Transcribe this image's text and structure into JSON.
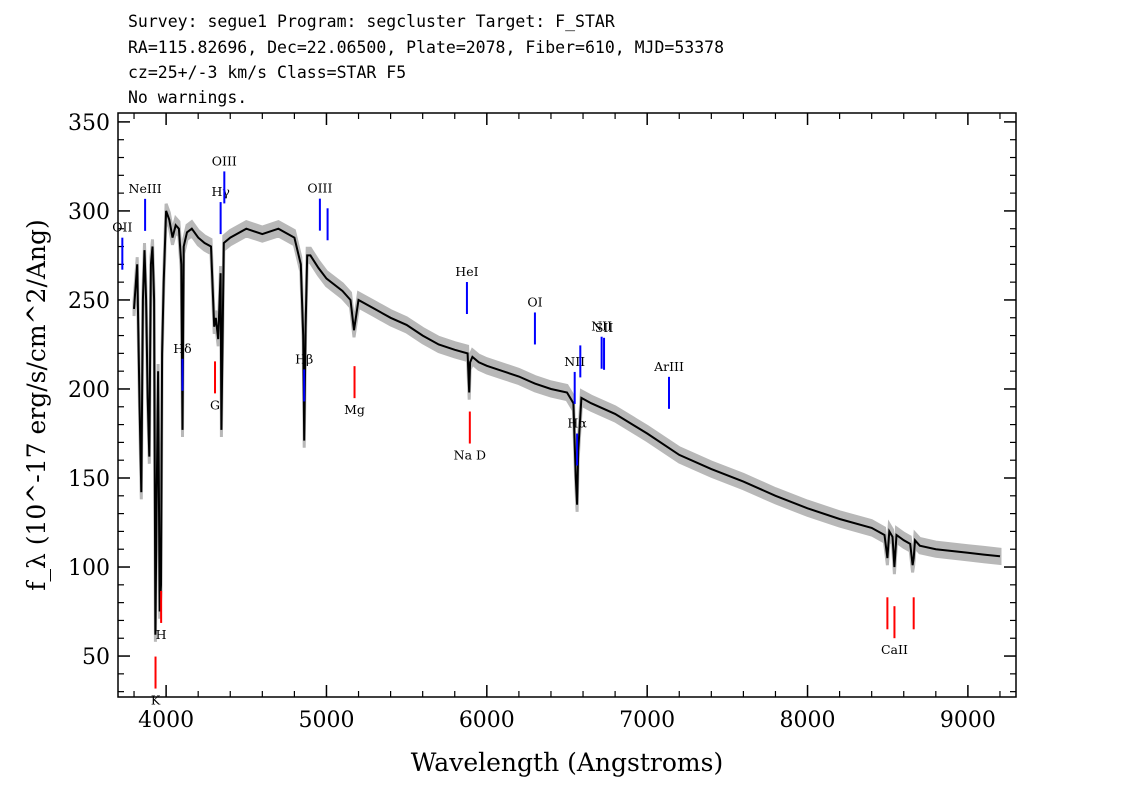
{
  "header": {
    "line1": "Survey: segue1 Program: segcluster Target: F_STAR",
    "line2": "RA=115.82696, Dec=22.06500, Plate=2078, Fiber=610, MJD=53378",
    "line3": "cz=25+/-3 km/s Class=STAR F5",
    "line4": "No warnings."
  },
  "colors": {
    "spectrum": "#000000",
    "error_band": "#b8b8b8",
    "emission_marker": "#0000ff",
    "absorption_marker": "#ff0000"
  },
  "chart_data": {
    "type": "line",
    "xlabel": "Wavelength (Angstroms)",
    "ylabel": "f_λ (10^-17 erg/s/cm^2/Ang)",
    "xlim": [
      3700,
      9300
    ],
    "ylim": [
      27,
      355
    ],
    "x_ticks": [
      4000,
      5000,
      6000,
      7000,
      8000,
      9000
    ],
    "y_ticks": [
      50,
      100,
      150,
      200,
      250,
      300,
      350
    ],
    "grid": false,
    "series": [
      {
        "x": [
          3800,
          3820,
          3835,
          3845,
          3855,
          3865,
          3875,
          3885,
          3895,
          3905,
          3915,
          3925,
          3933,
          3940,
          3950,
          3960,
          3968,
          3975,
          3985,
          4000,
          4020,
          4040,
          4060,
          4080,
          4095,
          4102,
          4110,
          4130,
          4160,
          4200,
          4240,
          4280,
          4300,
          4310,
          4325,
          4340,
          4345,
          4360,
          4400,
          4500,
          4600,
          4700,
          4800,
          4840,
          4855,
          4861,
          4870,
          4880,
          4900,
          4950,
          5000,
          5100,
          5150,
          5172,
          5200,
          5300,
          5400,
          5500,
          5600,
          5700,
          5800,
          5880,
          5890,
          5896,
          5910,
          5950,
          6000,
          6100,
          6200,
          6300,
          6400,
          6500,
          6540,
          6555,
          6563,
          6570,
          6590,
          6650,
          6800,
          7000,
          7200,
          7400,
          7600,
          7800,
          8000,
          8200,
          8400,
          8480,
          8498,
          8510,
          8530,
          8542,
          8555,
          8600,
          8640,
          8655,
          8662,
          8670,
          8700,
          8800,
          9000,
          9100,
          9200
        ],
        "y": [
          245,
          270,
          190,
          142,
          250,
          278,
          250,
          195,
          162,
          270,
          280,
          250,
          62,
          130,
          210,
          75,
          90,
          220,
          260,
          300,
          295,
          285,
          292,
          290,
          270,
          177,
          280,
          288,
          290,
          285,
          282,
          280,
          235,
          240,
          228,
          265,
          177,
          282,
          285,
          290,
          287,
          290,
          285,
          270,
          230,
          171,
          235,
          275,
          275,
          268,
          262,
          255,
          250,
          233,
          250,
          245,
          240,
          236,
          230,
          225,
          222,
          220,
          198,
          215,
          218,
          215,
          213,
          210,
          207,
          203,
          200,
          198,
          192,
          150,
          135,
          165,
          195,
          192,
          186,
          175,
          163,
          155,
          148,
          140,
          133,
          127,
          122,
          118,
          105,
          120,
          117,
          100,
          118,
          115,
          113,
          101,
          105,
          115,
          112,
          110,
          108,
          107,
          106
        ]
      }
    ],
    "lines": [
      {
        "label": "OII",
        "wavelength": 3727,
        "kind": "emission"
      },
      {
        "label": "NeIII",
        "wavelength": 3869,
        "kind": "emission"
      },
      {
        "label": "Hδ",
        "wavelength": 4102,
        "kind": "emission"
      },
      {
        "label": "Hγ",
        "wavelength": 4340,
        "kind": "emission"
      },
      {
        "label": "OIII",
        "wavelength": 4363,
        "kind": "emission"
      },
      {
        "label": "Hβ",
        "wavelength": 4861,
        "kind": "emission"
      },
      {
        "label": "OIII",
        "wavelength": 4959,
        "kind": "emission"
      },
      {
        "label": "",
        "wavelength": 5007,
        "kind": "emission"
      },
      {
        "label": "HeI",
        "wavelength": 5876,
        "kind": "emission"
      },
      {
        "label": "OI",
        "wavelength": 6300,
        "kind": "emission"
      },
      {
        "label": "NII",
        "wavelength": 6548,
        "kind": "emission"
      },
      {
        "label": "Hα",
        "wavelength": 6563,
        "kind": "emission"
      },
      {
        "label": "",
        "wavelength": 6583,
        "kind": "emission"
      },
      {
        "label": "NII",
        "wavelength": 6716,
        "kind": "emission"
      },
      {
        "label": "SII",
        "wavelength": 6731,
        "kind": "emission"
      },
      {
        "label": "ArIII",
        "wavelength": 7136,
        "kind": "emission"
      },
      {
        "label": "K",
        "wavelength": 3934,
        "kind": "absorption"
      },
      {
        "label": "H",
        "wavelength": 3969,
        "kind": "absorption"
      },
      {
        "label": "G",
        "wavelength": 4305,
        "kind": "absorption"
      },
      {
        "label": "Mg",
        "wavelength": 5175,
        "kind": "absorption"
      },
      {
        "label": "Na D",
        "wavelength": 5894,
        "kind": "absorption"
      },
      {
        "label": "",
        "wavelength": 8498,
        "kind": "absorption"
      },
      {
        "label": "CaII",
        "wavelength": 8542,
        "kind": "absorption"
      },
      {
        "label": "",
        "wavelength": 8662,
        "kind": "absorption"
      }
    ]
  }
}
